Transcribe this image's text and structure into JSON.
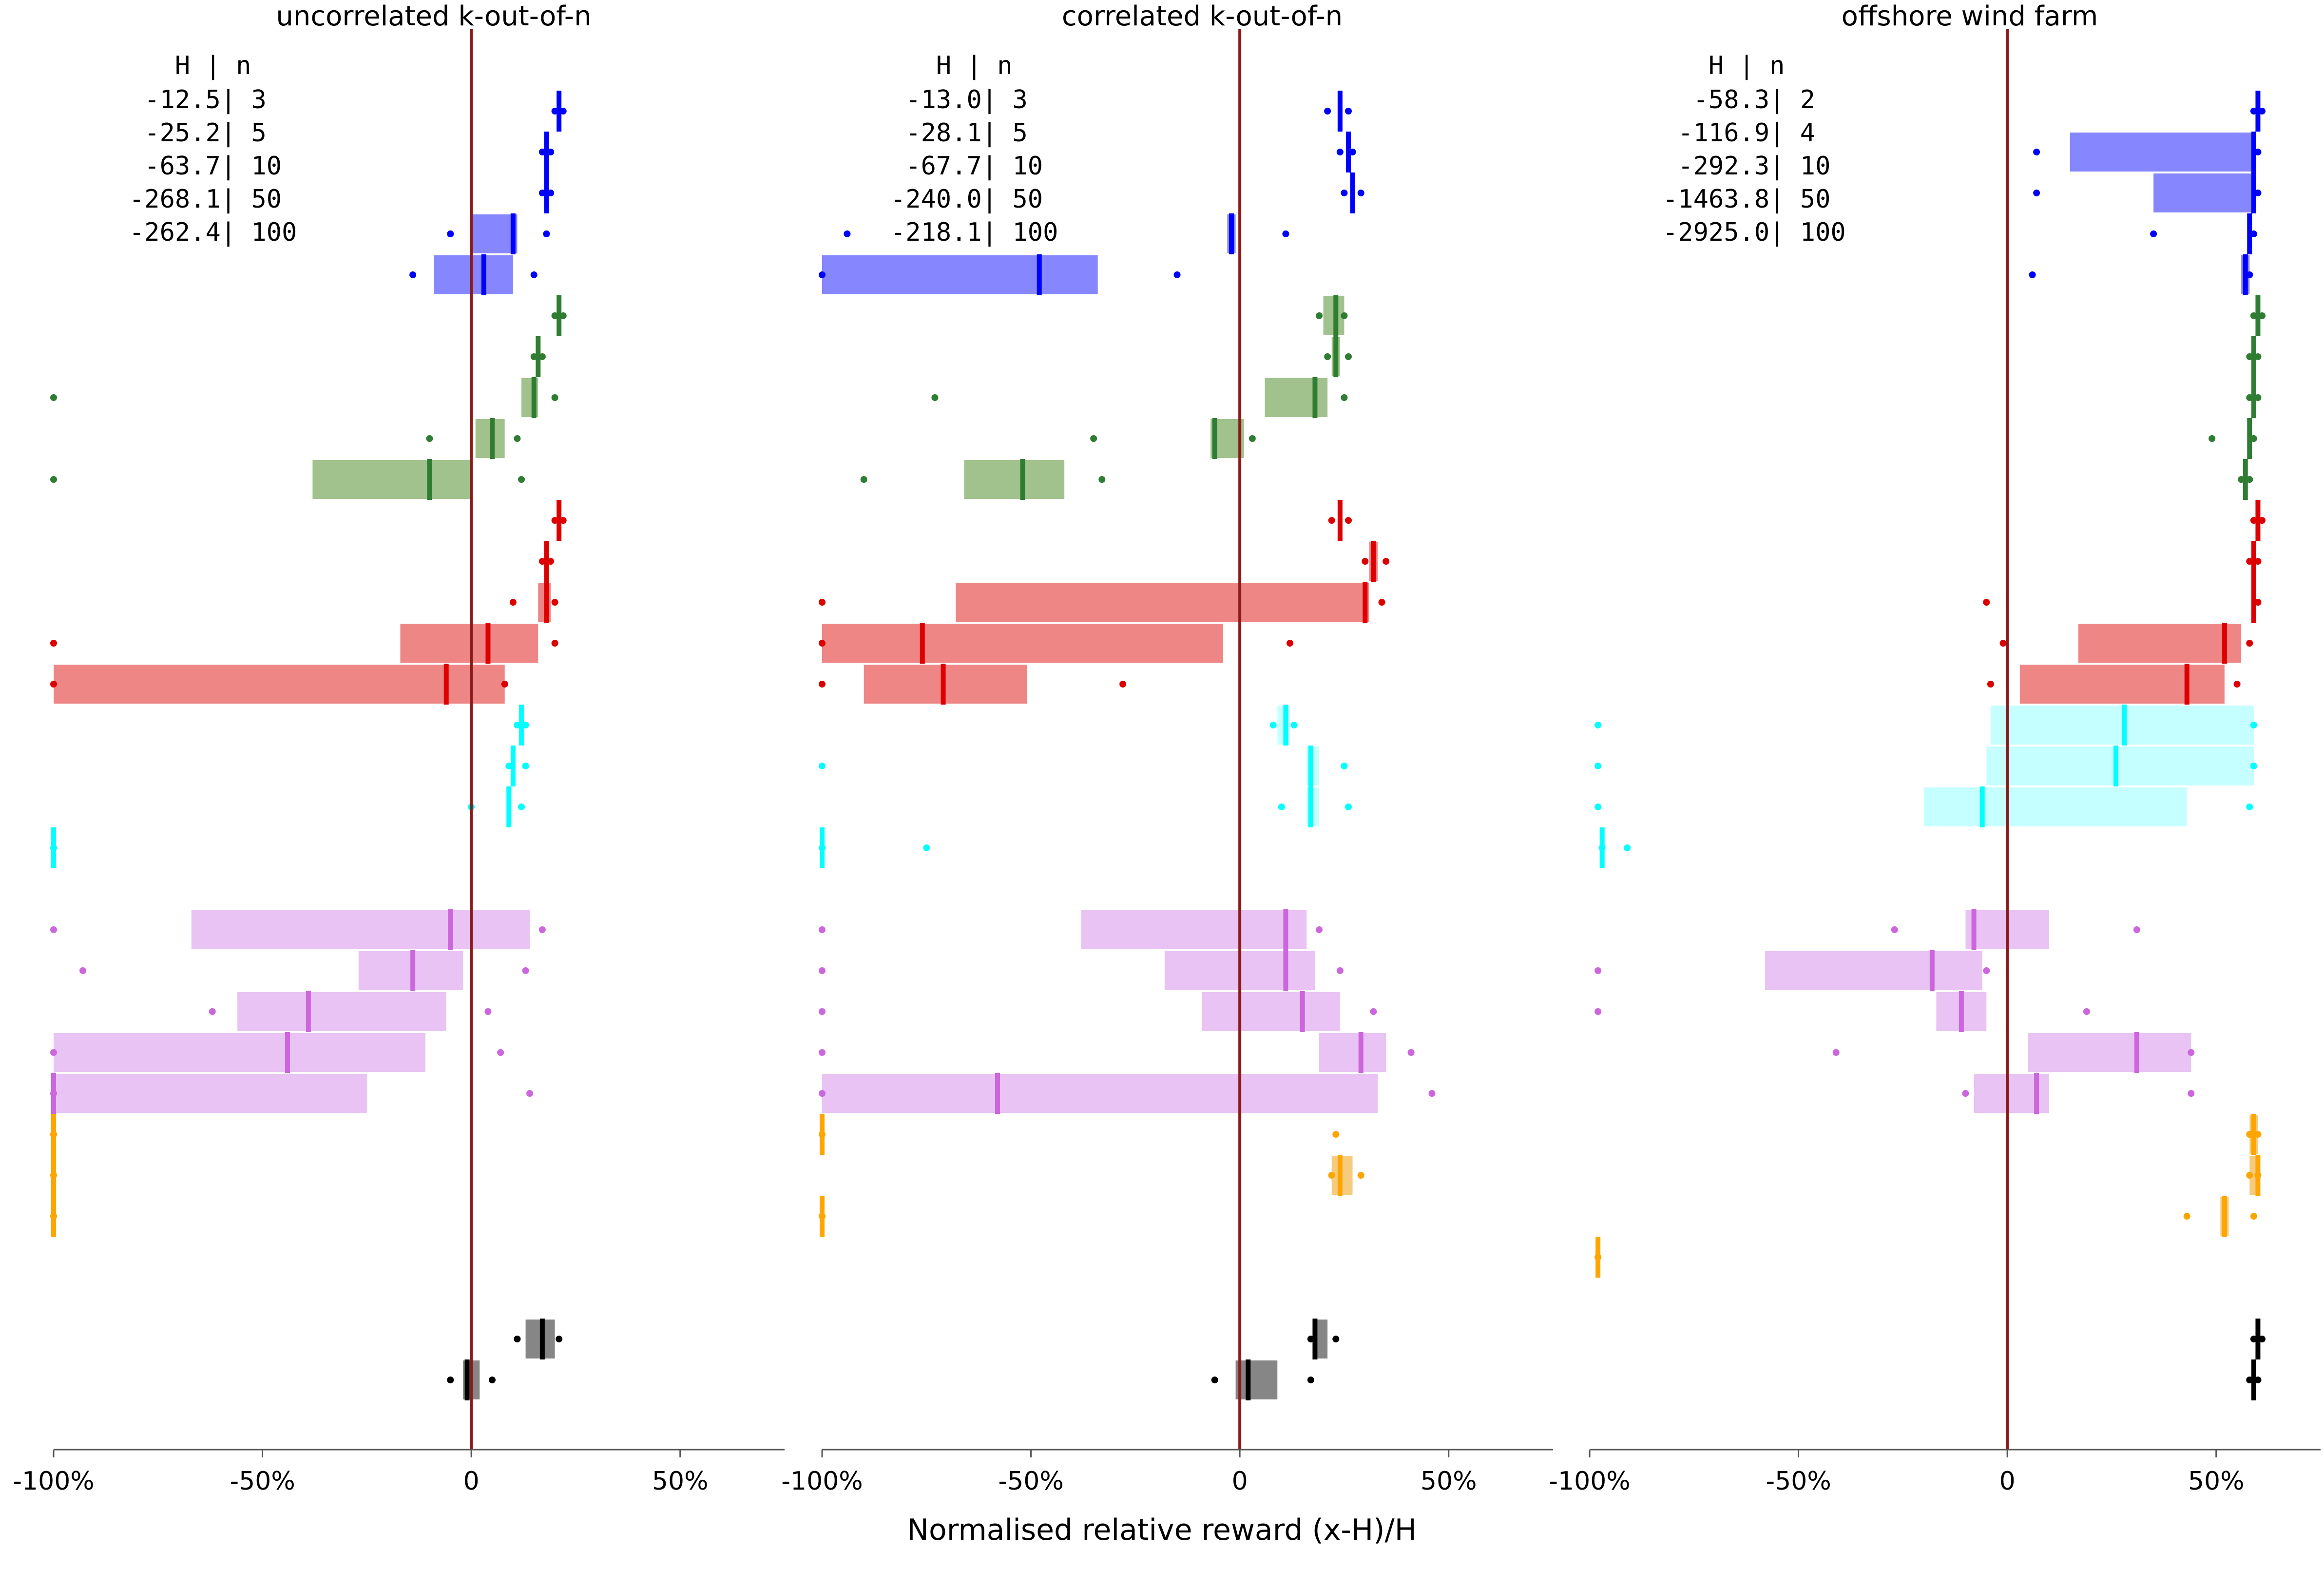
{
  "figure": {
    "xlabel": "Normalised relative reward (x-H)/H",
    "tick_labels": [
      "-100%",
      "-50%",
      "0",
      "50%"
    ],
    "reference_line_color": "#8B1A1A",
    "group_colors": [
      "#0000FF",
      "#2E7D32",
      "#DD0000",
      "#00FFFF",
      "#CC66DD",
      "#FFA500",
      "#000000"
    ],
    "box_colors": [
      "#8080FF",
      "#9DBF87",
      "#ED8080",
      "#C2FFFF",
      "#E8C0F2",
      "#F4C977",
      "#808080"
    ]
  },
  "chart_data": [
    {
      "type": "box",
      "title": "uncorrelated k-out-of-n",
      "xlim": [
        -1.0,
        0.75
      ],
      "legend_header": "   H | n",
      "legend_rows": [
        " -12.5| 3",
        " -25.2| 5",
        " -63.7| 10",
        "-268.1| 50",
        "-262.4| 100"
      ],
      "rows": [
        {
          "g": 0,
          "med": 0.21,
          "q1": 0.208,
          "q3": 0.212,
          "lo": 0.2,
          "hi": 0.22
        },
        {
          "g": 0,
          "med": 0.18,
          "q1": 0.178,
          "q3": 0.182,
          "lo": 0.17,
          "hi": 0.19
        },
        {
          "g": 0,
          "med": 0.18,
          "q1": 0.178,
          "q3": 0.182,
          "lo": 0.17,
          "hi": 0.19
        },
        {
          "g": 0,
          "med": 0.1,
          "q1": 0.0,
          "q3": 0.11,
          "lo": -0.05,
          "hi": 0.18
        },
        {
          "g": 0,
          "med": 0.03,
          "q1": -0.09,
          "q3": 0.1,
          "lo": -0.14,
          "hi": 0.15
        },
        {
          "g": 1,
          "med": 0.21,
          "q1": 0.208,
          "q3": 0.212,
          "lo": 0.2,
          "hi": 0.22
        },
        {
          "g": 1,
          "med": 0.16,
          "q1": 0.158,
          "q3": 0.162,
          "lo": 0.15,
          "hi": 0.17
        },
        {
          "g": 1,
          "med": 0.15,
          "q1": 0.12,
          "q3": 0.16,
          "lo": -1.0,
          "hi": 0.2
        },
        {
          "g": 1,
          "med": 0.05,
          "q1": 0.01,
          "q3": 0.08,
          "lo": -0.1,
          "hi": 0.11
        },
        {
          "g": 1,
          "med": -0.1,
          "q1": -0.38,
          "q3": 0.0,
          "lo": -1.0,
          "hi": 0.12
        },
        {
          "g": 2,
          "med": 0.21,
          "q1": 0.208,
          "q3": 0.212,
          "lo": 0.2,
          "hi": 0.22
        },
        {
          "g": 2,
          "med": 0.18,
          "q1": 0.178,
          "q3": 0.182,
          "lo": 0.17,
          "hi": 0.19
        },
        {
          "g": 2,
          "med": 0.18,
          "q1": 0.16,
          "q3": 0.19,
          "lo": 0.1,
          "hi": 0.2
        },
        {
          "g": 2,
          "med": 0.04,
          "q1": -0.17,
          "q3": 0.16,
          "lo": -1.0,
          "hi": 0.2
        },
        {
          "g": 2,
          "med": -0.06,
          "q1": -1.0,
          "q3": 0.08,
          "lo": -1.0,
          "hi": 0.08
        },
        {
          "g": 3,
          "med": 0.12,
          "q1": 0.118,
          "q3": 0.122,
          "lo": 0.11,
          "hi": 0.13
        },
        {
          "g": 3,
          "med": 0.1,
          "q1": 0.098,
          "q3": 0.102,
          "lo": 0.09,
          "hi": 0.13
        },
        {
          "g": 3,
          "med": 0.09,
          "q1": 0.088,
          "q3": 0.092,
          "lo": 0.0,
          "hi": 0.12
        },
        {
          "g": 3,
          "med": -1.0,
          "q1": -1.0,
          "q3": -1.0,
          "lo": -1.0,
          "hi": -1.0
        },
        {
          "g": 4,
          "med": -0.05,
          "q1": -0.67,
          "q3": 0.14,
          "lo": -1.0,
          "hi": 0.17
        },
        {
          "g": 4,
          "med": -0.14,
          "q1": -0.27,
          "q3": -0.02,
          "lo": -0.93,
          "hi": 0.13
        },
        {
          "g": 4,
          "med": -0.39,
          "q1": -0.56,
          "q3": -0.06,
          "lo": -0.62,
          "hi": 0.04
        },
        {
          "g": 4,
          "med": -0.44,
          "q1": -1.0,
          "q3": -0.11,
          "lo": -1.0,
          "hi": 0.07
        },
        {
          "g": 4,
          "med": -1.0,
          "q1": -1.0,
          "q3": -0.25,
          "lo": -1.0,
          "hi": 0.14
        },
        {
          "g": 5,
          "med": -1.0,
          "q1": -1.0,
          "q3": -1.0,
          "lo": -1.0,
          "hi": -1.0
        },
        {
          "g": 5,
          "med": -1.0,
          "q1": -1.0,
          "q3": -1.0,
          "lo": -1.0,
          "hi": -1.0
        },
        {
          "g": 5,
          "med": -1.0,
          "q1": -1.0,
          "q3": -1.0,
          "lo": -1.0,
          "hi": -1.0
        },
        {
          "g": 6,
          "med": 0.17,
          "q1": 0.13,
          "q3": 0.2,
          "lo": 0.11,
          "hi": 0.21
        },
        {
          "g": 6,
          "med": -0.01,
          "q1": -0.02,
          "q3": 0.02,
          "lo": -0.05,
          "hi": 0.05
        }
      ]
    },
    {
      "type": "box",
      "title": "correlated k-out-of-n",
      "xlim": [
        -1.0,
        0.75
      ],
      "legend_header": "   H | n",
      "legend_rows": [
        " -13.0| 3",
        " -28.1| 5",
        " -67.7| 10",
        "-240.0| 50",
        "-218.1| 100"
      ],
      "rows": [
        {
          "g": 0,
          "med": 0.24,
          "q1": 0.238,
          "q3": 0.242,
          "lo": 0.21,
          "hi": 0.26
        },
        {
          "g": 0,
          "med": 0.26,
          "q1": 0.258,
          "q3": 0.262,
          "lo": 0.24,
          "hi": 0.27
        },
        {
          "g": 0,
          "med": 0.27,
          "q1": 0.268,
          "q3": 0.272,
          "lo": 0.25,
          "hi": 0.29
        },
        {
          "g": 0,
          "med": -0.02,
          "q1": -0.03,
          "q3": -0.01,
          "lo": -0.94,
          "hi": 0.11
        },
        {
          "g": 0,
          "med": -0.48,
          "q1": -1.0,
          "q3": -0.34,
          "lo": -1.0,
          "hi": -0.15
        },
        {
          "g": 1,
          "med": 0.23,
          "q1": 0.2,
          "q3": 0.25,
          "lo": 0.19,
          "hi": 0.25
        },
        {
          "g": 1,
          "med": 0.23,
          "q1": 0.22,
          "q3": 0.24,
          "lo": 0.21,
          "hi": 0.26
        },
        {
          "g": 1,
          "med": 0.18,
          "q1": 0.06,
          "q3": 0.21,
          "lo": -0.73,
          "hi": 0.25
        },
        {
          "g": 1,
          "med": -0.06,
          "q1": -0.07,
          "q3": 0.01,
          "lo": -0.35,
          "hi": 0.03
        },
        {
          "g": 1,
          "med": -0.52,
          "q1": -0.66,
          "q3": -0.42,
          "lo": -0.9,
          "hi": -0.33
        },
        {
          "g": 2,
          "med": 0.24,
          "q1": 0.238,
          "q3": 0.242,
          "lo": 0.22,
          "hi": 0.26
        },
        {
          "g": 2,
          "med": 0.32,
          "q1": 0.31,
          "q3": 0.33,
          "lo": 0.3,
          "hi": 0.35
        },
        {
          "g": 2,
          "med": 0.3,
          "q1": -0.68,
          "q3": 0.31,
          "lo": -1.0,
          "hi": 0.34
        },
        {
          "g": 2,
          "med": -0.76,
          "q1": -1.0,
          "q3": -0.04,
          "lo": -1.0,
          "hi": 0.12
        },
        {
          "g": 2,
          "med": -0.71,
          "q1": -0.9,
          "q3": -0.51,
          "lo": -1.0,
          "hi": -0.28
        },
        {
          "g": 3,
          "med": 0.11,
          "q1": 0.09,
          "q3": 0.12,
          "lo": 0.08,
          "hi": 0.13
        },
        {
          "g": 3,
          "med": 0.17,
          "q1": 0.16,
          "q3": 0.19,
          "lo": -1.0,
          "hi": 0.25
        },
        {
          "g": 3,
          "med": 0.17,
          "q1": 0.16,
          "q3": 0.19,
          "lo": 0.1,
          "hi": 0.26
        },
        {
          "g": 3,
          "med": -1.0,
          "q1": -1.0,
          "q3": -1.0,
          "lo": -1.0,
          "hi": -0.75
        },
        {
          "g": 4,
          "med": 0.11,
          "q1": -0.38,
          "q3": 0.16,
          "lo": -1.0,
          "hi": 0.19
        },
        {
          "g": 4,
          "med": 0.11,
          "q1": -0.18,
          "q3": 0.18,
          "lo": -1.0,
          "hi": 0.24
        },
        {
          "g": 4,
          "med": 0.15,
          "q1": -0.09,
          "q3": 0.24,
          "lo": -1.0,
          "hi": 0.32
        },
        {
          "g": 4,
          "med": 0.29,
          "q1": 0.19,
          "q3": 0.35,
          "lo": -1.0,
          "hi": 0.41
        },
        {
          "g": 4,
          "med": -0.58,
          "q1": -1.0,
          "q3": 0.33,
          "lo": -1.0,
          "hi": 0.46
        },
        {
          "g": 5,
          "med": -1.0,
          "q1": -1.0,
          "q3": -1.0,
          "lo": -1.0,
          "hi": 0.23
        },
        {
          "g": 5,
          "med": 0.24,
          "q1": 0.22,
          "q3": 0.27,
          "lo": 0.22,
          "hi": 0.29
        },
        {
          "g": 5,
          "med": -1.0,
          "q1": -1.0,
          "q3": -1.0,
          "lo": -1.0,
          "hi": -1.0
        },
        {
          "g": 6,
          "med": 0.18,
          "q1": 0.18,
          "q3": 0.21,
          "lo": 0.17,
          "hi": 0.23
        },
        {
          "g": 6,
          "med": 0.02,
          "q1": -0.01,
          "q3": 0.09,
          "lo": -0.06,
          "hi": 0.17
        }
      ]
    },
    {
      "type": "box",
      "title": "offshore wind farm",
      "xlim": [
        -1.0,
        0.75
      ],
      "legend_header": "   H | n",
      "legend_rows": [
        "  -58.3| 2",
        " -116.9| 4",
        " -292.3| 10",
        "-1463.8| 50",
        "-2925.0| 100"
      ],
      "rows": [
        {
          "g": 0,
          "med": 0.6,
          "q1": 0.598,
          "q3": 0.602,
          "lo": 0.59,
          "hi": 0.61
        },
        {
          "g": 0,
          "med": 0.59,
          "q1": 0.15,
          "q3": 0.59,
          "lo": 0.07,
          "hi": 0.6
        },
        {
          "g": 0,
          "med": 0.59,
          "q1": 0.35,
          "q3": 0.59,
          "lo": 0.07,
          "hi": 0.6
        },
        {
          "g": 0,
          "med": 0.58,
          "q1": 0.578,
          "q3": 0.582,
          "lo": 0.35,
          "hi": 0.59
        },
        {
          "g": 0,
          "med": 0.57,
          "q1": 0.56,
          "q3": 0.58,
          "lo": 0.06,
          "hi": 0.58
        },
        {
          "g": 1,
          "med": 0.6,
          "q1": 0.598,
          "q3": 0.602,
          "lo": 0.59,
          "hi": 0.61
        },
        {
          "g": 1,
          "med": 0.59,
          "q1": 0.588,
          "q3": 0.592,
          "lo": 0.58,
          "hi": 0.6
        },
        {
          "g": 1,
          "med": 0.59,
          "q1": 0.588,
          "q3": 0.592,
          "lo": 0.58,
          "hi": 0.6
        },
        {
          "g": 1,
          "med": 0.58,
          "q1": 0.578,
          "q3": 0.582,
          "lo": 0.49,
          "hi": 0.59
        },
        {
          "g": 1,
          "med": 0.57,
          "q1": 0.568,
          "q3": 0.572,
          "lo": 0.56,
          "hi": 0.58
        },
        {
          "g": 2,
          "med": 0.6,
          "q1": 0.598,
          "q3": 0.602,
          "lo": 0.59,
          "hi": 0.61
        },
        {
          "g": 2,
          "med": 0.59,
          "q1": 0.588,
          "q3": 0.592,
          "lo": 0.58,
          "hi": 0.6
        },
        {
          "g": 2,
          "med": 0.59,
          "q1": 0.588,
          "q3": 0.592,
          "lo": -0.05,
          "hi": 0.6
        },
        {
          "g": 2,
          "med": 0.52,
          "q1": 0.17,
          "q3": 0.56,
          "lo": -0.01,
          "hi": 0.58
        },
        {
          "g": 2,
          "med": 0.43,
          "q1": 0.03,
          "q3": 0.52,
          "lo": -0.04,
          "hi": 0.55
        },
        {
          "g": 3,
          "med": 0.28,
          "q1": -0.04,
          "q3": 0.59,
          "lo": -0.98,
          "hi": 0.59
        },
        {
          "g": 3,
          "med": 0.26,
          "q1": -0.05,
          "q3": 0.59,
          "lo": -0.98,
          "hi": 0.59
        },
        {
          "g": 3,
          "med": -0.06,
          "q1": -0.2,
          "q3": 0.43,
          "lo": -0.98,
          "hi": 0.58
        },
        {
          "g": 3,
          "med": -0.97,
          "q1": -0.97,
          "q3": -0.97,
          "lo": -0.97,
          "hi": -0.91
        },
        {
          "g": 4,
          "med": -0.08,
          "q1": -0.1,
          "q3": 0.1,
          "lo": -0.27,
          "hi": 0.31
        },
        {
          "g": 4,
          "med": -0.18,
          "q1": -0.58,
          "q3": -0.06,
          "lo": -0.98,
          "hi": -0.05
        },
        {
          "g": 4,
          "med": -0.11,
          "q1": -0.17,
          "q3": -0.05,
          "lo": -0.98,
          "hi": 0.19
        },
        {
          "g": 4,
          "med": 0.31,
          "q1": 0.05,
          "q3": 0.44,
          "lo": -0.41,
          "hi": 0.44
        },
        {
          "g": 4,
          "med": 0.07,
          "q1": -0.08,
          "q3": 0.1,
          "lo": -0.1,
          "hi": 0.44
        },
        {
          "g": 5,
          "med": 0.59,
          "q1": 0.58,
          "q3": 0.6,
          "lo": 0.58,
          "hi": 0.6
        },
        {
          "g": 5,
          "med": 0.6,
          "q1": 0.58,
          "q3": 0.6,
          "lo": 0.58,
          "hi": 0.6
        },
        {
          "g": 5,
          "med": 0.52,
          "q1": 0.51,
          "q3": 0.53,
          "lo": 0.43,
          "hi": 0.59
        },
        {
          "g": 5,
          "med": -0.98,
          "q1": -0.98,
          "q3": -0.98,
          "lo": -0.98,
          "hi": -0.98
        },
        {
          "g": 6,
          "med": 0.6,
          "q1": 0.598,
          "q3": 0.602,
          "lo": 0.59,
          "hi": 0.61
        },
        {
          "g": 6,
          "med": 0.59,
          "q1": 0.588,
          "q3": 0.592,
          "lo": 0.58,
          "hi": 0.6
        }
      ]
    }
  ]
}
